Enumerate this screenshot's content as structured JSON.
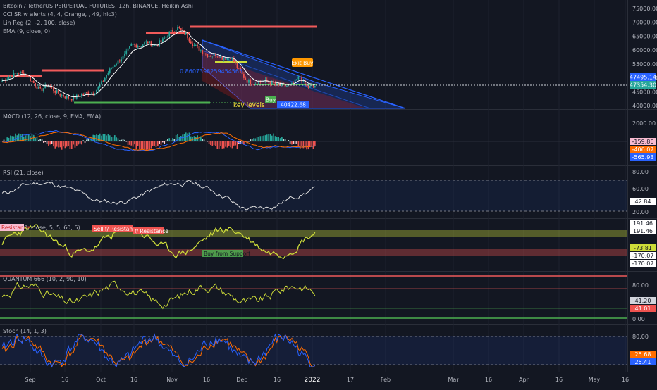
{
  "header": {
    "symbol_line": "Bitcoin / TetherUS PERPETUAL FUTURES, 12h, BINANCE, Heikin Ashi",
    "indicators": [
      "CCI SR w alerts (4, 4, Orange, , 49, hlc3)",
      "Lin Reg (2, -2, 100, close)",
      "EMA (9, close, 0)"
    ]
  },
  "colors": {
    "background": "#131722",
    "grid": "#1e222d",
    "text": "#b2b5be",
    "up": "#26a69a",
    "down": "#ef5350",
    "resistance": "#f05a5a",
    "support": "#4caf50",
    "linreg_upper": "#2962ff",
    "linreg_lower": "#b71c1c",
    "ema": "#ffffff",
    "cci": "#cddc39",
    "macd": "#2962ff",
    "signal": "#ff6d00",
    "stoch_k": "#2962ff",
    "stoch_d": "#ff6d00"
  },
  "x_axis": {
    "labels": [
      "Sep",
      "16",
      "Oct",
      "16",
      "Nov",
      "16",
      "Dec",
      "16",
      "2022",
      "17",
      "Feb",
      "Mar",
      "16",
      "Apr",
      "16",
      "May",
      "16"
    ]
  },
  "annotations": {
    "fib_value": "0.8607398259454565",
    "exit_buy": "Exit Buy",
    "buy": "Buy",
    "key_levels": "key levels",
    "support_price": "40422.68"
  },
  "price_badges": [
    "47495.14",
    "47354.30"
  ],
  "cci_labels": {
    "resistance": "Resistance",
    "sell_resistance": "Sell f/ Resistance",
    "resistance2": "f/ Resistance",
    "buy_support": "Buy from Support",
    "title_suffix": "0, close, 5, 5, 60, 5)"
  },
  "panes": {
    "macd": {
      "title": "MACD (12, 26, close, 9, EMA, EMA)",
      "ticks": [
        "2000.00",
        "0.00"
      ],
      "badges": [
        "-159.86",
        "-406.07",
        "-565.93"
      ]
    },
    "rsi": {
      "title": "RSI (21, close)",
      "ticks": [
        "80.00",
        "60.00",
        "20.00"
      ],
      "badges": [
        "42.84"
      ]
    },
    "cci": {
      "badges": [
        "191.46",
        "191.46",
        "-73.81",
        "-170.07",
        "-170.07"
      ]
    },
    "quantum": {
      "title": "QUANTUM 666 (10, 2, 90, 10)",
      "ticks": [
        "80.00",
        "0.00"
      ],
      "badges": [
        "41.20",
        "41.01"
      ]
    },
    "stoch": {
      "title": "Stoch (14, 1, 3)",
      "ticks": [
        "80.00"
      ],
      "badges": [
        "25.68",
        "25.41"
      ]
    }
  },
  "chart_data": {
    "type": "candlestick",
    "title": "Bitcoin / TetherUS PERPETUAL FUTURES, 12h, BINANCE, Heikin Ashi",
    "y_ticks": [
      75000,
      70000,
      65000,
      60000,
      55000,
      50000,
      45000,
      40000
    ],
    "ylim": [
      39000,
      76000
    ],
    "x_ticks": [
      "Sep",
      "16",
      "Oct",
      "16",
      "Nov",
      "16",
      "Dec",
      "16",
      "2022",
      "17",
      "Feb",
      "Mar",
      "16",
      "Apr",
      "16",
      "May",
      "16"
    ],
    "series": [
      {
        "name": "Heikin Ashi close (approx.)",
        "values": [
          49000,
          50500,
          52000,
          51500,
          48500,
          45500,
          47500,
          45000,
          43500,
          42500,
          43500,
          44500,
          44500,
          48000,
          52500,
          55500,
          58000,
          62000,
          61500,
          63000,
          61500,
          63500,
          66500,
          68000,
          66000,
          62000,
          60000,
          58000,
          58500,
          57000,
          57500,
          53000,
          49000,
          48000,
          49000,
          48500,
          47500,
          47000,
          47500,
          50500,
          46500,
          47200
        ]
      }
    ],
    "levels": [
      {
        "name": "resistance",
        "value": 69000
      },
      {
        "name": "resistance",
        "value": 52800
      },
      {
        "name": "resistance",
        "value": 54000
      },
      {
        "name": "resistance",
        "value": 66500
      },
      {
        "name": "support",
        "value": 40422.68
      },
      {
        "name": "last price",
        "value": 47354.3
      }
    ]
  }
}
